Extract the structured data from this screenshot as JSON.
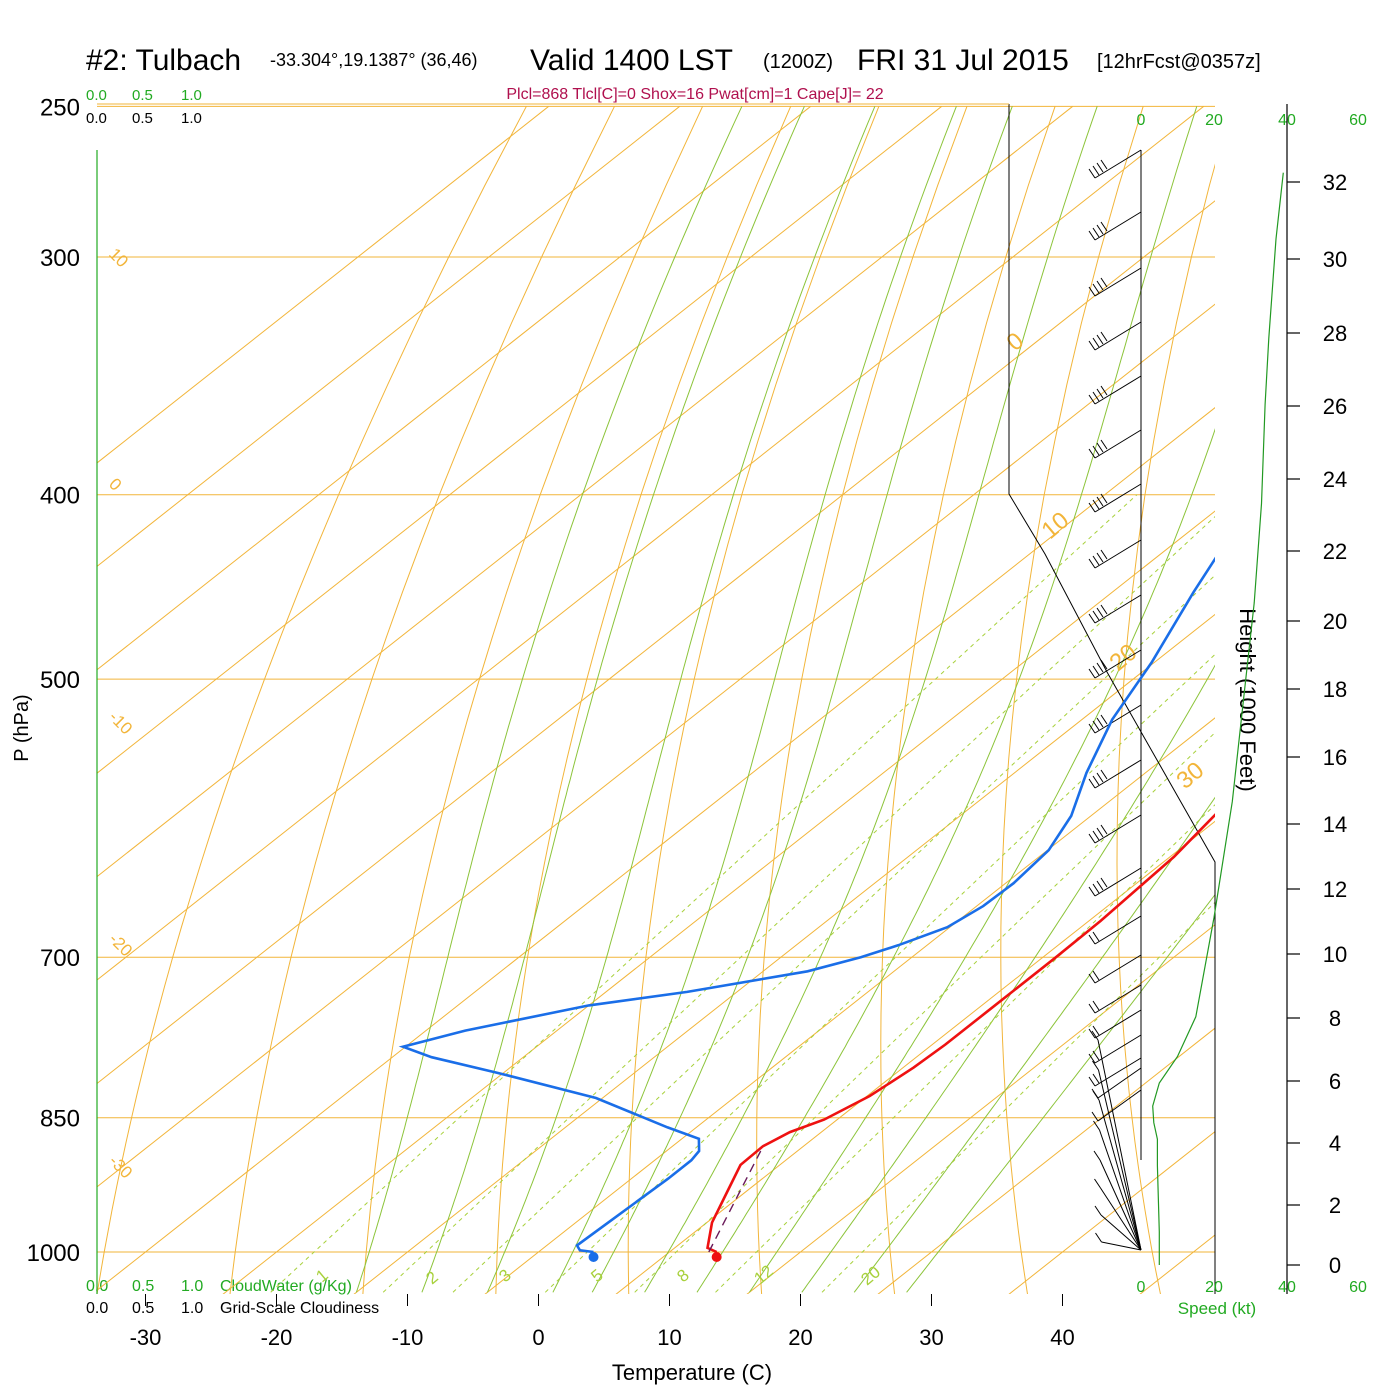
{
  "header": {
    "station": "#2: Tulbach",
    "coords": "-33.304°,19.1387° (36,46)",
    "valid": "Valid 1400 LST",
    "utc": "(1200Z)",
    "date": "FRI 31 Jul 2015",
    "forecast": "[12hrFcst@0357z]",
    "indices": "Plcl=868 Tlcl[C]=0 Shox=16 Pwat[cm]=1 Cape[J]= 22"
  },
  "colors": {
    "temperature": "#ee1111",
    "dewpoint": "#1a6ee8",
    "isobar": "#f2b53a",
    "dry_adiabat": "#f2b53a",
    "moist_adiabat": "#8cc43a",
    "mixing_ratio": "#a8d13c",
    "green_text": "#22aa22",
    "indices_text": "#b0104e",
    "parcel": "#6a1a5a"
  },
  "scales": {
    "top_green": [
      "0.0",
      "0.5",
      "1.0"
    ],
    "top_black": [
      "0.0",
      "0.5",
      "1.0"
    ],
    "bottom_green": [
      "0.0",
      "0.5",
      "1.0"
    ],
    "bottom_black": [
      "0.0",
      "0.5",
      "1.0"
    ],
    "cloudwater_label": "CloudWater (g/Kg)",
    "cloudiness_label": "Grid-Scale Cloudiness",
    "speed_ticks": [
      "0",
      "20",
      "40",
      "60"
    ],
    "speed_label": "Speed (kt)"
  },
  "chart_data": {
    "type": "line",
    "title": "",
    "xlabel": "Temperature (C)",
    "ylabel": "P (hPa)",
    "y2label": "Height (1000 Feet)",
    "xlim": [
      -35,
      45
    ],
    "ylim": [
      1050,
      250
    ],
    "x_ticks": [
      -30,
      -20,
      -10,
      0,
      10,
      20,
      30,
      40
    ],
    "y_ticks": [
      250,
      300,
      400,
      500,
      700,
      850,
      1000
    ],
    "height_ticks": [
      0,
      2,
      4,
      6,
      8,
      10,
      12,
      14,
      16,
      18,
      20,
      22,
      24,
      26,
      28,
      30,
      32
    ],
    "isotherm_labels": [
      "10",
      "0",
      "-10",
      "-20",
      "-30"
    ],
    "dry_adiabat_labels": [
      "0",
      "10",
      "20",
      "30"
    ],
    "mixing_ratio_labels": [
      "1",
      "2",
      "3",
      "5",
      "8",
      "12",
      "20"
    ],
    "series": [
      {
        "name": "Temperature",
        "points": [
          [
            13.6,
            1000
          ],
          [
            12.5,
            995
          ],
          [
            10.4,
            965
          ],
          [
            8.6,
            930
          ],
          [
            7.0,
            900
          ],
          [
            6.9,
            880
          ],
          [
            7.6,
            865
          ],
          [
            9.0,
            852
          ],
          [
            10.2,
            828
          ],
          [
            10.8,
            800
          ],
          [
            11.0,
            778
          ],
          [
            11.0,
            745
          ],
          [
            11.0,
            700
          ],
          [
            10.9,
            670
          ],
          [
            10.3,
            620
          ],
          [
            9.1,
            580
          ],
          [
            8.4,
            560
          ],
          [
            6.3,
            520
          ],
          [
            4.0,
            485
          ],
          [
            1.6,
            450
          ],
          [
            -0.7,
            420
          ],
          [
            -3.2,
            390
          ],
          [
            -5.4,
            360
          ],
          [
            -7.2,
            335
          ],
          [
            -8.5,
            310
          ],
          [
            -9.4,
            295
          ],
          [
            -10.0,
            280
          ],
          [
            -10.5,
            270
          ]
        ]
      },
      {
        "name": "Dewpoint",
        "points": [
          [
            4.2,
            1000
          ],
          [
            3.0,
            998
          ],
          [
            2.3,
            992
          ],
          [
            2.5,
            960
          ],
          [
            2.8,
            915
          ],
          [
            2.8,
            895
          ],
          [
            2.5,
            885
          ],
          [
            1.3,
            872
          ],
          [
            -2.2,
            860
          ],
          [
            -10.5,
            830
          ],
          [
            -20.5,
            805
          ],
          [
            -27.0,
            790
          ],
          [
            -30.2,
            780
          ],
          [
            -27.0,
            765
          ],
          [
            -20.0,
            742
          ],
          [
            -13.8,
            730
          ],
          [
            -6.6,
            712
          ],
          [
            -3.9,
            700
          ],
          [
            -2.2,
            690
          ],
          [
            -0.2,
            675
          ],
          [
            0.5,
            658
          ],
          [
            0.6,
            640
          ],
          [
            0.1,
            615
          ],
          [
            -1.5,
            590
          ],
          [
            -4.5,
            560
          ],
          [
            -7.7,
            525
          ],
          [
            -10.2,
            490
          ],
          [
            -13.8,
            450
          ],
          [
            -16.5,
            420
          ],
          [
            -18.1,
            400
          ],
          [
            -20.0,
            375
          ],
          [
            -22.8,
            350
          ],
          [
            -25.8,
            325
          ],
          [
            -27.5,
            310
          ],
          [
            -28.8,
            297
          ],
          [
            -29.2,
            285
          ],
          [
            -29.6,
            275
          ],
          [
            -29.7,
            270
          ]
        ]
      },
      {
        "name": "Parcel",
        "points": [
          [
            13.0,
            1000
          ],
          [
            7.2,
            885
          ]
        ]
      },
      {
        "name": "Height profile",
        "points": [
          [
            5.0,
            0
          ],
          [
            5.0,
            1.0
          ],
          [
            4.5,
            3.0
          ],
          [
            4.5,
            3.8
          ],
          [
            3.5,
            4.3
          ],
          [
            3.2,
            4.8
          ],
          [
            5.0,
            5.5
          ],
          [
            10.0,
            6.3
          ],
          [
            15.0,
            7.5
          ],
          [
            20.0,
            10.5
          ],
          [
            25.0,
            14
          ],
          [
            28.0,
            17
          ],
          [
            31.0,
            20
          ],
          [
            33.0,
            23
          ],
          [
            34.0,
            26
          ],
          [
            35.0,
            28
          ],
          [
            37.0,
            31
          ],
          [
            39.0,
            33
          ]
        ]
      }
    ],
    "markers": [
      {
        "name": "surface-temperature",
        "value": [
          13.6,
          1000
        ]
      },
      {
        "name": "surface-dewpoint",
        "value": [
          4.2,
          1000
        ]
      }
    ]
  }
}
